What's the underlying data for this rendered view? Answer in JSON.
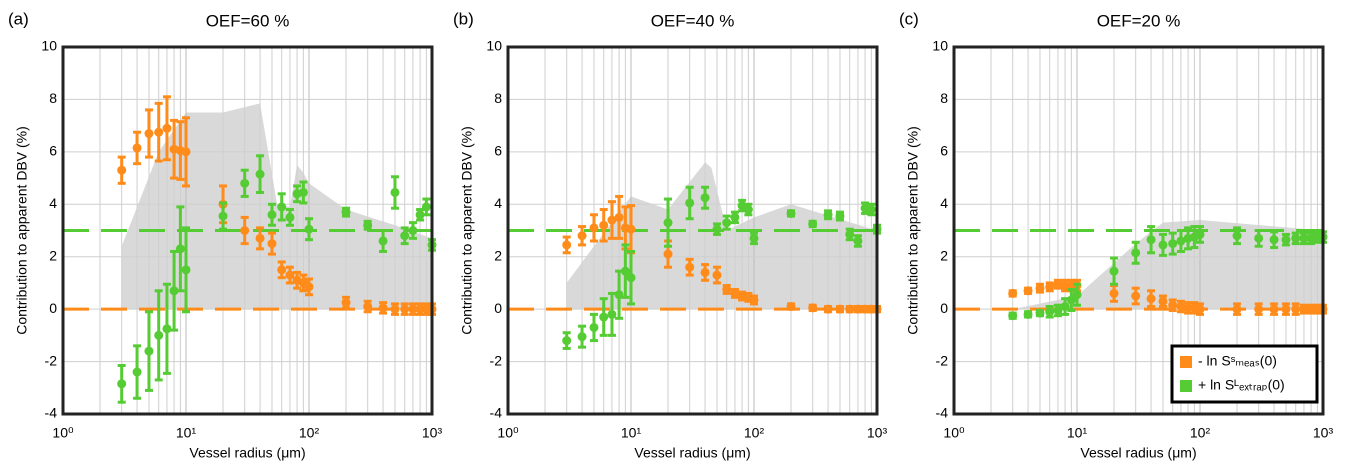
{
  "chart_data": [
    {
      "type": "errorbar",
      "panel_label": "(a)",
      "title": "OEF=60 %",
      "xlabel": "Vessel radius (μm)",
      "ylabel": "Contribution to apparent DBV (%)",
      "xscale": "log",
      "grid": true,
      "xlim": [
        1,
        1000
      ],
      "ylim": [
        -4,
        10
      ],
      "xticks": [
        {
          "value": 1,
          "label": "10⁰"
        },
        {
          "value": 10,
          "label": "10¹"
        },
        {
          "value": 100,
          "label": "10²"
        },
        {
          "value": 1000,
          "label": "10³"
        }
      ],
      "yticks": [
        -4,
        -2,
        0,
        2,
        4,
        6,
        8,
        10
      ],
      "x": [
        3,
        4,
        5,
        6,
        7,
        8,
        9,
        10,
        20,
        30,
        40,
        50,
        60,
        70,
        80,
        90,
        100,
        200,
        300,
        400,
        500,
        600,
        700,
        800,
        900,
        1000
      ],
      "area": {
        "color": "#d9d9d9",
        "x": [
          3,
          6,
          10,
          20,
          40,
          55,
          70,
          80,
          90,
          100,
          200,
          500,
          1000
        ],
        "values": [
          2.4,
          6.0,
          7.5,
          7.5,
          7.85,
          4.0,
          3.9,
          5.5,
          5.2,
          4.8,
          3.8,
          3.2,
          2.7
        ]
      },
      "hlines": [
        {
          "value": 3,
          "color": "#55cc33"
        },
        {
          "value": 0,
          "color": "#ff8c1a"
        }
      ],
      "series": [
        {
          "color": "#ff8c1a",
          "values": [
            5.3,
            6.15,
            6.7,
            6.75,
            6.9,
            6.1,
            6.05,
            6.0,
            4.0,
            3.0,
            2.7,
            2.5,
            1.5,
            1.3,
            1.1,
            1.0,
            0.85,
            0.25,
            0.1,
            0.05,
            0,
            0,
            0,
            0,
            0,
            0
          ],
          "errors": [
            0.5,
            0.6,
            0.9,
            1.1,
            1.2,
            1.1,
            1.1,
            1.3,
            0.7,
            0.5,
            0.4,
            0.4,
            0.3,
            0.3,
            0.3,
            0.3,
            0.3,
            0.2,
            0.2,
            0.2,
            0.2,
            0.2,
            0.2,
            0.2,
            0.2,
            0.2
          ]
        },
        {
          "color": "#55cc33",
          "values": [
            -2.85,
            -2.4,
            -1.6,
            -1.0,
            -0.75,
            0.7,
            2.3,
            1.5,
            3.55,
            4.8,
            5.15,
            3.6,
            3.9,
            3.5,
            4.4,
            4.45,
            3.05,
            3.7,
            3.2,
            2.6,
            4.45,
            2.8,
            3.0,
            3.6,
            3.9,
            2.45
          ],
          "errors": [
            0.7,
            1.0,
            1.5,
            1.7,
            1.7,
            1.5,
            1.6,
            1.6,
            0.5,
            0.5,
            0.7,
            0.4,
            0.5,
            0.3,
            0.3,
            0.4,
            0.4,
            0.15,
            0.15,
            0.4,
            0.6,
            0.3,
            0.3,
            0.2,
            0.3,
            0.2
          ]
        }
      ]
    },
    {
      "type": "errorbar",
      "panel_label": "(b)",
      "title": "OEF=40 %",
      "xlabel": "Vessel radius (μm)",
      "ylabel": "Contribution to apparent DBV (%)",
      "xscale": "log",
      "grid": true,
      "xlim": [
        1,
        1000
      ],
      "ylim": [
        -4,
        10
      ],
      "xticks": [
        {
          "value": 1,
          "label": "10⁰"
        },
        {
          "value": 10,
          "label": "10¹"
        },
        {
          "value": 100,
          "label": "10²"
        },
        {
          "value": 1000,
          "label": "10³"
        }
      ],
      "yticks": [
        -4,
        -2,
        0,
        2,
        4,
        6,
        8,
        10
      ],
      "x": [
        3,
        4,
        5,
        6,
        7,
        8,
        9,
        10,
        20,
        30,
        40,
        50,
        60,
        70,
        80,
        90,
        100,
        200,
        300,
        400,
        500,
        600,
        700,
        800,
        900,
        1000
      ],
      "area": {
        "color": "#d9d9d9",
        "x": [
          3,
          10,
          20,
          40,
          45,
          60,
          100,
          200,
          1000
        ],
        "values": [
          1.0,
          4.3,
          3.8,
          5.6,
          5.4,
          3.0,
          3.5,
          4.0,
          3.0
        ]
      },
      "hlines": [
        {
          "value": 3,
          "color": "#55cc33"
        },
        {
          "value": 0,
          "color": "#ff8c1a"
        }
      ],
      "series": [
        {
          "color": "#ff8c1a",
          "values": [
            2.45,
            2.8,
            3.1,
            3.2,
            3.4,
            3.5,
            3.1,
            3.05,
            2.1,
            1.6,
            1.4,
            1.3,
            0.75,
            0.6,
            0.5,
            0.45,
            0.35,
            0.1,
            0.05,
            0,
            0,
            0,
            0,
            0,
            0,
            0
          ],
          "errors": [
            0.3,
            0.35,
            0.5,
            0.6,
            0.7,
            0.8,
            0.8,
            0.9,
            0.5,
            0.3,
            0.3,
            0.3,
            0.15,
            0.15,
            0.15,
            0.15,
            0.15,
            0.1,
            0.1,
            0.1,
            0.1,
            0.1,
            0.1,
            0.1,
            0.1,
            0.1
          ]
        },
        {
          "color": "#55cc33",
          "values": [
            -1.2,
            -1.05,
            -0.7,
            -0.3,
            -0.2,
            0.55,
            1.45,
            1.2,
            3.3,
            4.05,
            4.25,
            3.05,
            3.3,
            3.5,
            3.95,
            3.8,
            2.7,
            3.65,
            3.25,
            3.6,
            3.55,
            2.85,
            2.6,
            3.85,
            3.8,
            3.05
          ],
          "errors": [
            0.3,
            0.4,
            0.5,
            0.7,
            0.8,
            0.9,
            1.0,
            1.0,
            0.9,
            0.6,
            0.4,
            0.2,
            0.25,
            0.2,
            0.2,
            0.2,
            0.2,
            0.1,
            0.1,
            0.15,
            0.15,
            0.2,
            0.2,
            0.2,
            0.2,
            0.15
          ]
        }
      ]
    },
    {
      "type": "errorbar",
      "panel_label": "(c)",
      "title": "OEF=20 %",
      "xlabel": "Vessel radius (μm)",
      "ylabel": "Contribution to apparent DBV (%)",
      "xscale": "log",
      "grid": true,
      "legend": "lower right",
      "xlim": [
        1,
        1000
      ],
      "ylim": [
        -4,
        10
      ],
      "xticks": [
        {
          "value": 1,
          "label": "10⁰"
        },
        {
          "value": 10,
          "label": "10¹"
        },
        {
          "value": 100,
          "label": "10²"
        },
        {
          "value": 1000,
          "label": "10³"
        }
      ],
      "yticks": [
        -4,
        -2,
        0,
        2,
        4,
        6,
        8,
        10
      ],
      "x": [
        3,
        4,
        5,
        6,
        7,
        8,
        9,
        10,
        20,
        30,
        40,
        50,
        60,
        70,
        80,
        90,
        100,
        200,
        300,
        400,
        500,
        600,
        700,
        800,
        900,
        1000
      ],
      "area": {
        "color": "#d9d9d9",
        "x": [
          3,
          10,
          30,
          50,
          100,
          1000
        ],
        "values": [
          0,
          0.5,
          2.5,
          3.3,
          3.4,
          3.0
        ]
      },
      "hlines": [
        {
          "value": 3,
          "color": "#55cc33"
        },
        {
          "value": 0,
          "color": "#ff8c1a"
        }
      ],
      "series": [
        {
          "name": "- ln Sˢₘₑₐₛ(0)",
          "color": "#ff8c1a",
          "values": [
            0.6,
            0.7,
            0.8,
            0.85,
            0.95,
            0.9,
            0.9,
            0.9,
            0.6,
            0.5,
            0.4,
            0.3,
            0.15,
            0.1,
            0.05,
            0.05,
            0,
            0,
            0,
            0,
            0,
            0,
            0,
            0,
            0,
            0
          ],
          "errors": [
            0.1,
            0.1,
            0.15,
            0.15,
            0.15,
            0.2,
            0.2,
            0.2,
            0.3,
            0.3,
            0.3,
            0.2,
            0.2,
            0.2,
            0.2,
            0.2,
            0.2,
            0.2,
            0.2,
            0.2,
            0.2,
            0.2,
            0.15,
            0.15,
            0.15,
            0.15
          ]
        },
        {
          "name": "+ ln Sᴸₑₓₜᵣₐₚ(0)",
          "color": "#55cc33",
          "values": [
            -0.25,
            -0.2,
            -0.15,
            -0.1,
            -0.05,
            0.1,
            0.35,
            0.55,
            1.45,
            2.15,
            2.65,
            2.45,
            2.5,
            2.6,
            2.7,
            2.75,
            2.85,
            2.8,
            2.7,
            2.65,
            2.65,
            2.7,
            2.7,
            2.7,
            2.75,
            2.75
          ],
          "errors": [
            0.1,
            0.1,
            0.1,
            0.2,
            0.2,
            0.3,
            0.4,
            0.4,
            0.5,
            0.4,
            0.5,
            0.4,
            0.4,
            0.4,
            0.4,
            0.4,
            0.3,
            0.3,
            0.3,
            0.3,
            0.2,
            0.2,
            0.2,
            0.2,
            0.2,
            0.2
          ]
        }
      ]
    }
  ]
}
